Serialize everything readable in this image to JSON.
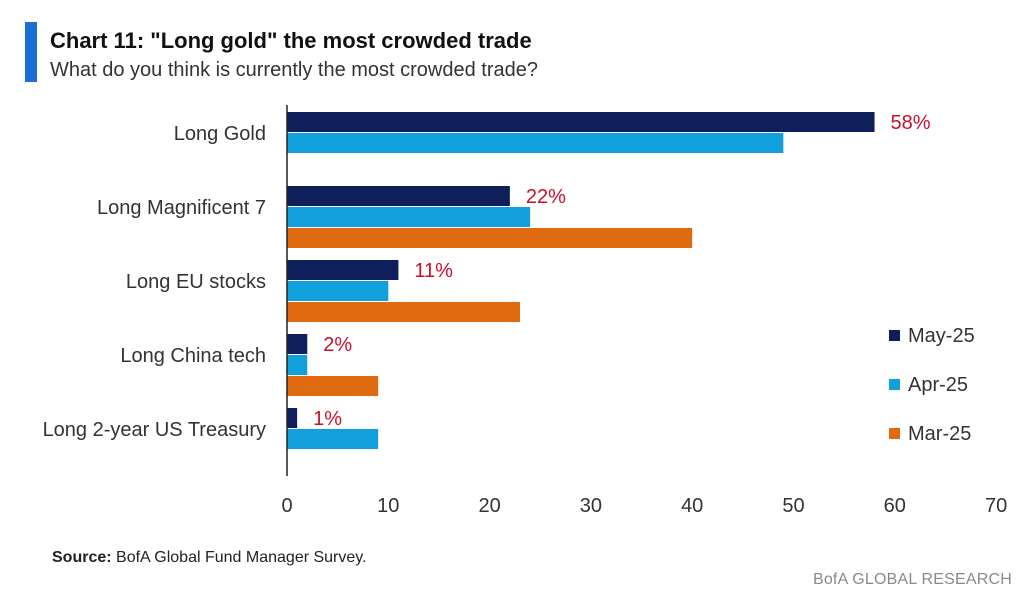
{
  "header": {
    "title": "Chart 11: \"Long gold\" the most crowded trade",
    "subtitle": "What do you think is currently the most crowded trade?"
  },
  "footer": {
    "source_label": "Source:",
    "source_text": "BofA Global Fund Manager Survey.",
    "brand": "BofA GLOBAL RESEARCH"
  },
  "colors": {
    "accent": "#1a6fd6",
    "may": "#0e1f5c",
    "apr": "#12a0dd",
    "mar": "#e06a10",
    "data_label": "#c8102e"
  },
  "chart_data": {
    "type": "bar",
    "orientation": "horizontal",
    "title": "Chart 11: \"Long gold\" the most crowded trade",
    "subtitle": "What do you think is currently the most crowded trade?",
    "categories": [
      "Long Gold",
      "Long Magnificent 7",
      "Long EU stocks",
      "Long China tech",
      "Long 2-year US Treasury"
    ],
    "series": [
      {
        "name": "May-25",
        "color": "#0e1f5c",
        "values": [
          58,
          22,
          11,
          2,
          1
        ]
      },
      {
        "name": "Apr-25",
        "color": "#12a0dd",
        "values": [
          49,
          24,
          10,
          2,
          9
        ]
      },
      {
        "name": "Mar-25",
        "color": "#e06a10",
        "values": [
          null,
          40,
          23,
          9,
          null
        ]
      }
    ],
    "data_labels": {
      "series": "May-25",
      "labels": [
        "58%",
        "22%",
        "11%",
        "2%",
        "1%"
      ]
    },
    "xlim": [
      0,
      70
    ],
    "xticks": [
      0,
      10,
      20,
      30,
      40,
      50,
      60,
      70
    ],
    "xlabel": "",
    "ylabel": "",
    "grid": false,
    "legend_position": "right"
  }
}
